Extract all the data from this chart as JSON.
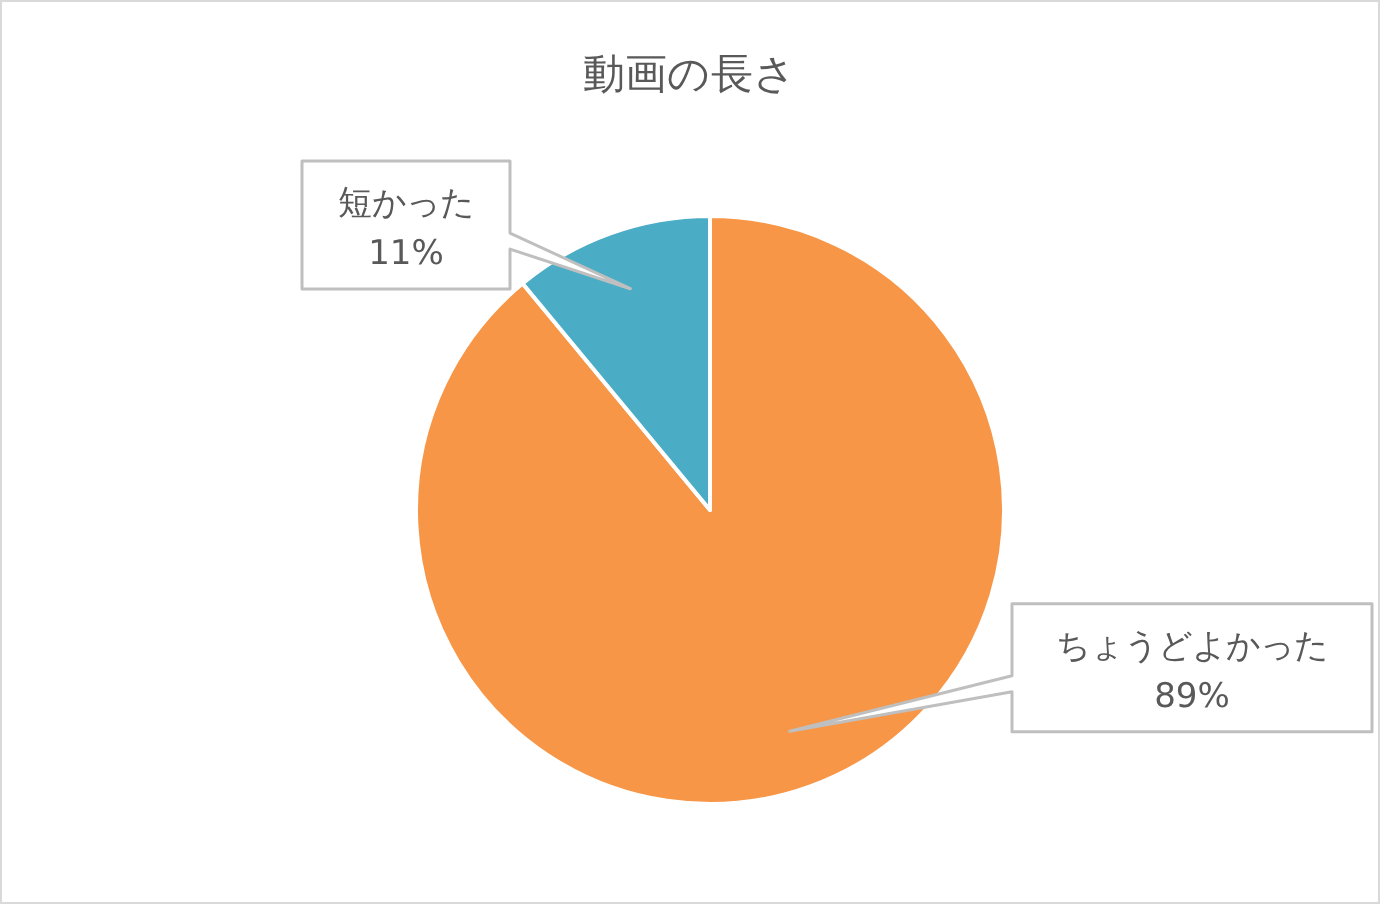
{
  "chart_data": {
    "type": "pie",
    "title": "動画の長さ",
    "categories": [
      "ちょうどよかった",
      "短かった"
    ],
    "values": [
      89,
      11
    ],
    "colors": [
      "#f79646",
      "#4bacc6"
    ],
    "value_labels": [
      "89%",
      "11%"
    ]
  }
}
